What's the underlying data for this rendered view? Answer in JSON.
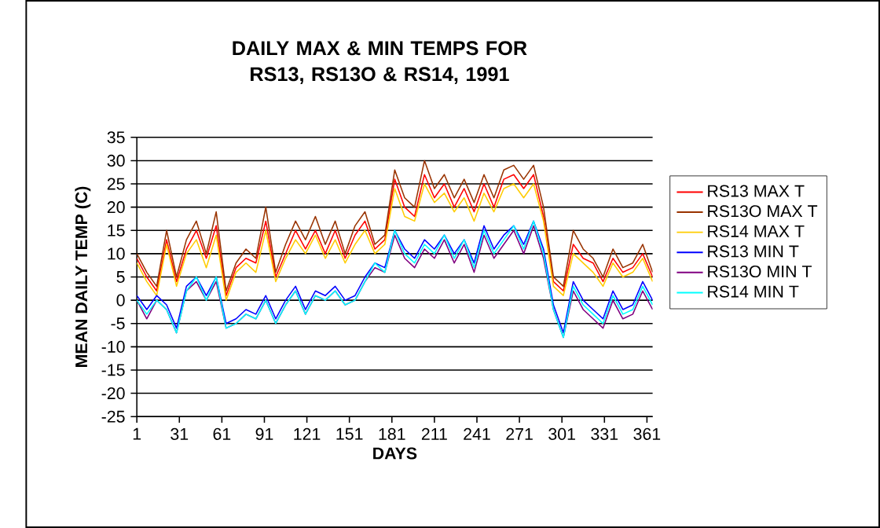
{
  "chart_data": {
    "type": "line",
    "title": "DAILY MAX & MIN TEMPS FOR RS13, RS13O & RS14, 1991",
    "xlabel": "DAYS",
    "ylabel": "MEAN DAILY TEMP (C)",
    "x": [
      1,
      8,
      15,
      22,
      29,
      36,
      43,
      50,
      57,
      64,
      71,
      78,
      85,
      92,
      99,
      106,
      113,
      120,
      127,
      134,
      141,
      148,
      155,
      162,
      169,
      176,
      183,
      190,
      197,
      204,
      211,
      218,
      225,
      232,
      239,
      246,
      253,
      260,
      267,
      274,
      281,
      288,
      295,
      302,
      309,
      316,
      323,
      330,
      337,
      344,
      351,
      358,
      365
    ],
    "xlim": [
      1,
      365
    ],
    "xticks": [
      1,
      31,
      61,
      91,
      121,
      151,
      181,
      211,
      241,
      271,
      301,
      331,
      361
    ],
    "ylim": [
      -25,
      35
    ],
    "yticks": [
      -25,
      -20,
      -15,
      -10,
      -5,
      0,
      5,
      10,
      15,
      20,
      25,
      30,
      35
    ],
    "grid": "y",
    "legend": "right",
    "marker": "none",
    "line_style": "solid",
    "series": [
      {
        "name": "RS13 MAX T",
        "color": "#ff0000",
        "values": [
          9,
          5,
          2,
          13,
          4,
          11,
          15,
          9,
          16,
          1,
          7,
          9,
          8,
          17,
          5,
          10,
          15,
          11,
          15,
          10,
          15,
          9,
          14,
          17,
          11,
          13,
          26,
          20,
          18,
          27,
          22,
          25,
          20,
          24,
          19,
          25,
          20,
          26,
          27,
          24,
          27,
          18,
          4,
          2,
          12,
          9,
          8,
          4,
          9,
          6,
          7,
          10,
          5
        ]
      },
      {
        "name": "RS13O MAX T",
        "color": "#993300",
        "values": [
          10,
          6,
          3,
          15,
          5,
          13,
          17,
          10,
          19,
          2,
          8,
          11,
          9,
          20,
          6,
          12,
          17,
          13,
          18,
          12,
          17,
          10,
          16,
          19,
          12,
          14,
          28,
          22,
          20,
          30,
          24,
          27,
          22,
          26,
          21,
          27,
          22,
          28,
          29,
          26,
          29,
          20,
          5,
          3,
          15,
          11,
          9,
          5,
          11,
          7,
          8,
          12,
          6
        ]
      },
      {
        "name": "RS14 MAX T",
        "color": "#ffcc00",
        "values": [
          8,
          4,
          1,
          12,
          3,
          10,
          13,
          7,
          14,
          0,
          6,
          8,
          6,
          15,
          4,
          9,
          13,
          10,
          14,
          9,
          13,
          8,
          12,
          15,
          10,
          12,
          24,
          18,
          17,
          25,
          21,
          23,
          19,
          22,
          17,
          23,
          19,
          24,
          25,
          22,
          25,
          17,
          3,
          1,
          10,
          8,
          6,
          3,
          8,
          5,
          6,
          9,
          4
        ]
      },
      {
        "name": "RS13 MIN T",
        "color": "#0000ff",
        "values": [
          1,
          -2,
          1,
          -1,
          -6,
          3,
          5,
          1,
          5,
          -5,
          -4,
          -2,
          -3,
          1,
          -4,
          0,
          3,
          -2,
          2,
          1,
          3,
          0,
          1,
          5,
          8,
          7,
          15,
          11,
          9,
          13,
          11,
          14,
          10,
          13,
          8,
          16,
          11,
          14,
          16,
          12,
          17,
          11,
          -1,
          -7,
          4,
          0,
          -2,
          -4,
          2,
          -2,
          -1,
          4,
          0
        ]
      },
      {
        "name": "RS13O MIN T",
        "color": "#800080",
        "values": [
          0,
          -4,
          0,
          -2,
          -7,
          2,
          4,
          0,
          4,
          -6,
          -5,
          -3,
          -4,
          0,
          -5,
          -1,
          2,
          -3,
          1,
          0,
          2,
          -1,
          0,
          4,
          7,
          6,
          14,
          9,
          7,
          11,
          9,
          13,
          8,
          12,
          6,
          14,
          9,
          12,
          15,
          10,
          16,
          9,
          -2,
          -8,
          2,
          -2,
          -4,
          -6,
          0,
          -4,
          -3,
          2,
          -2
        ]
      },
      {
        "name": "RS14 MIN T",
        "color": "#00ffff",
        "values": [
          0,
          -3,
          0,
          -2,
          -7,
          2,
          5,
          0,
          5,
          -6,
          -5,
          -3,
          -4,
          0,
          -5,
          -1,
          2,
          -3,
          1,
          0,
          2,
          -1,
          0,
          4,
          8,
          6,
          15,
          10,
          8,
          12,
          10,
          14,
          9,
          13,
          7,
          15,
          10,
          13,
          16,
          11,
          17,
          10,
          -2,
          -8,
          3,
          -1,
          -3,
          -5,
          1,
          -3,
          -2,
          3,
          -1
        ]
      }
    ]
  }
}
